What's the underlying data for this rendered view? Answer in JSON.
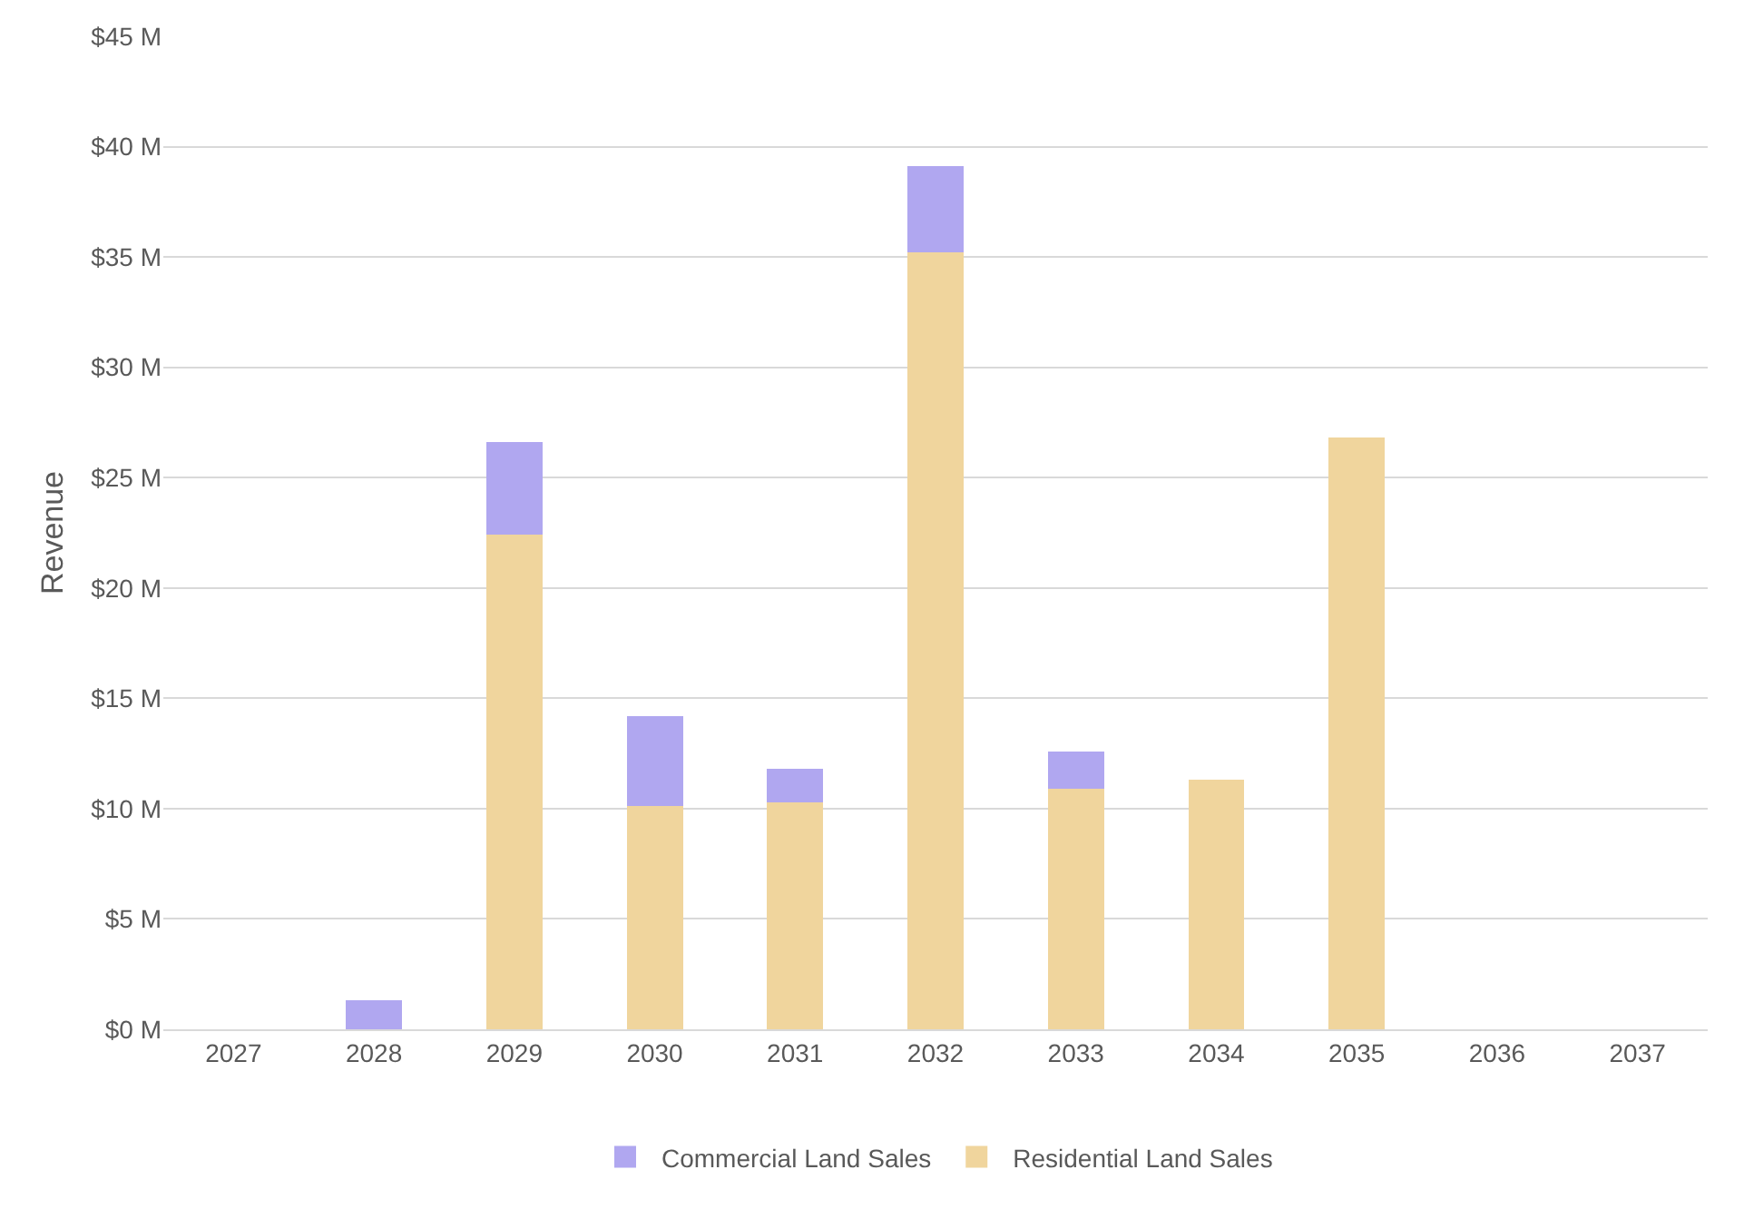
{
  "chart_data": {
    "type": "bar",
    "stacked": true,
    "ylabel": "Revenue",
    "categories": [
      "2027",
      "2028",
      "2029",
      "2030",
      "2031",
      "2032",
      "2033",
      "2034",
      "2035",
      "2036",
      "2037"
    ],
    "series": [
      {
        "name": "Residential Land Sales",
        "color": "#f0d59d",
        "values": [
          0,
          0,
          22.4,
          10.1,
          10.3,
          35.2,
          10.9,
          11.3,
          26.8,
          0,
          0
        ]
      },
      {
        "name": "Commercial Land Sales",
        "color": "#b0a7f0",
        "values": [
          0,
          1.3,
          4.2,
          4.1,
          1.5,
          3.9,
          1.7,
          0,
          0,
          0,
          0
        ]
      }
    ],
    "ylim": [
      0,
      45
    ],
    "yticks": [
      {
        "value": 0,
        "label": "$0 M"
      },
      {
        "value": 5,
        "label": "$5 M"
      },
      {
        "value": 10,
        "label": "$10 M"
      },
      {
        "value": 15,
        "label": "$15 M"
      },
      {
        "value": 20,
        "label": "$20 M"
      },
      {
        "value": 25,
        "label": "$25 M"
      },
      {
        "value": 30,
        "label": "$30 M"
      },
      {
        "value": 35,
        "label": "$35 M"
      },
      {
        "value": 40,
        "label": "$40 M"
      },
      {
        "value": 45,
        "label": "$45 M"
      }
    ],
    "grid": "y",
    "legend": "bottom"
  }
}
